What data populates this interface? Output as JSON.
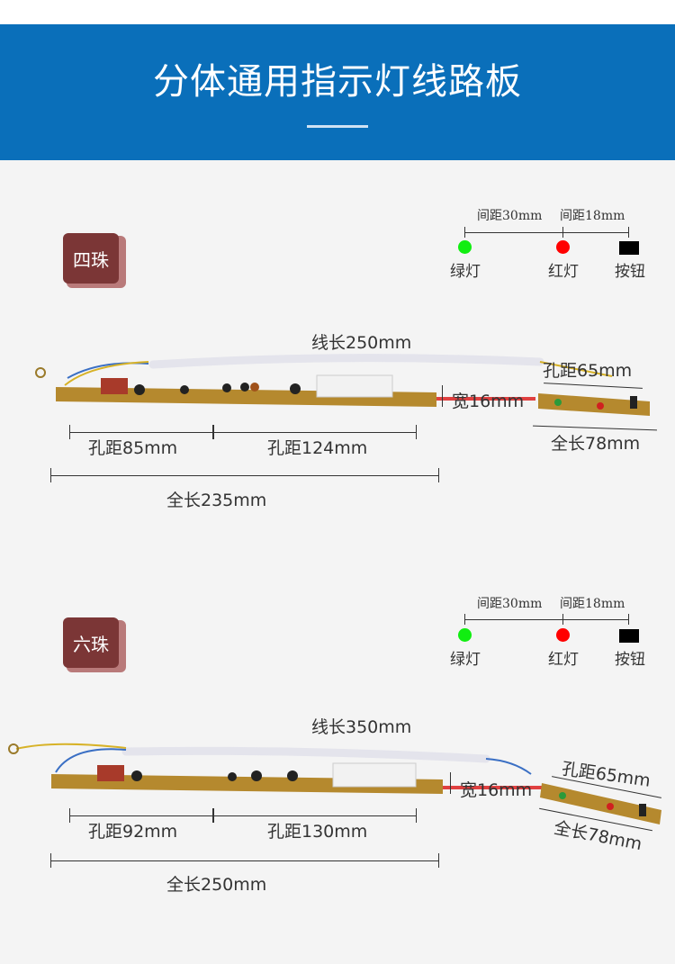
{
  "header": {
    "title": "分体通用指示灯线路板"
  },
  "colors": {
    "header": "#0a6fba",
    "badge": "#7b3636",
    "green_led": "#11ee11",
    "red_led": "#ff0000"
  },
  "legend": {
    "spacing_a": "间距30mm",
    "spacing_b": "间距18mm",
    "green": "绿灯",
    "red": "红灯",
    "button": "按钮"
  },
  "sections": [
    {
      "badge": "四珠",
      "wire_length": "线长250mm",
      "width": "宽16mm",
      "hole_small": "孔距65mm",
      "len_small": "全长78mm",
      "hole_a": "孔距85mm",
      "hole_b": "孔距124mm",
      "total": "全长235mm"
    },
    {
      "badge": "六珠",
      "wire_length": "线长350mm",
      "width": "宽16mm",
      "hole_small": "孔距65mm",
      "len_small": "全长78mm",
      "hole_a": "孔距92mm",
      "hole_b": "孔距130mm",
      "total": "全长250mm"
    }
  ]
}
